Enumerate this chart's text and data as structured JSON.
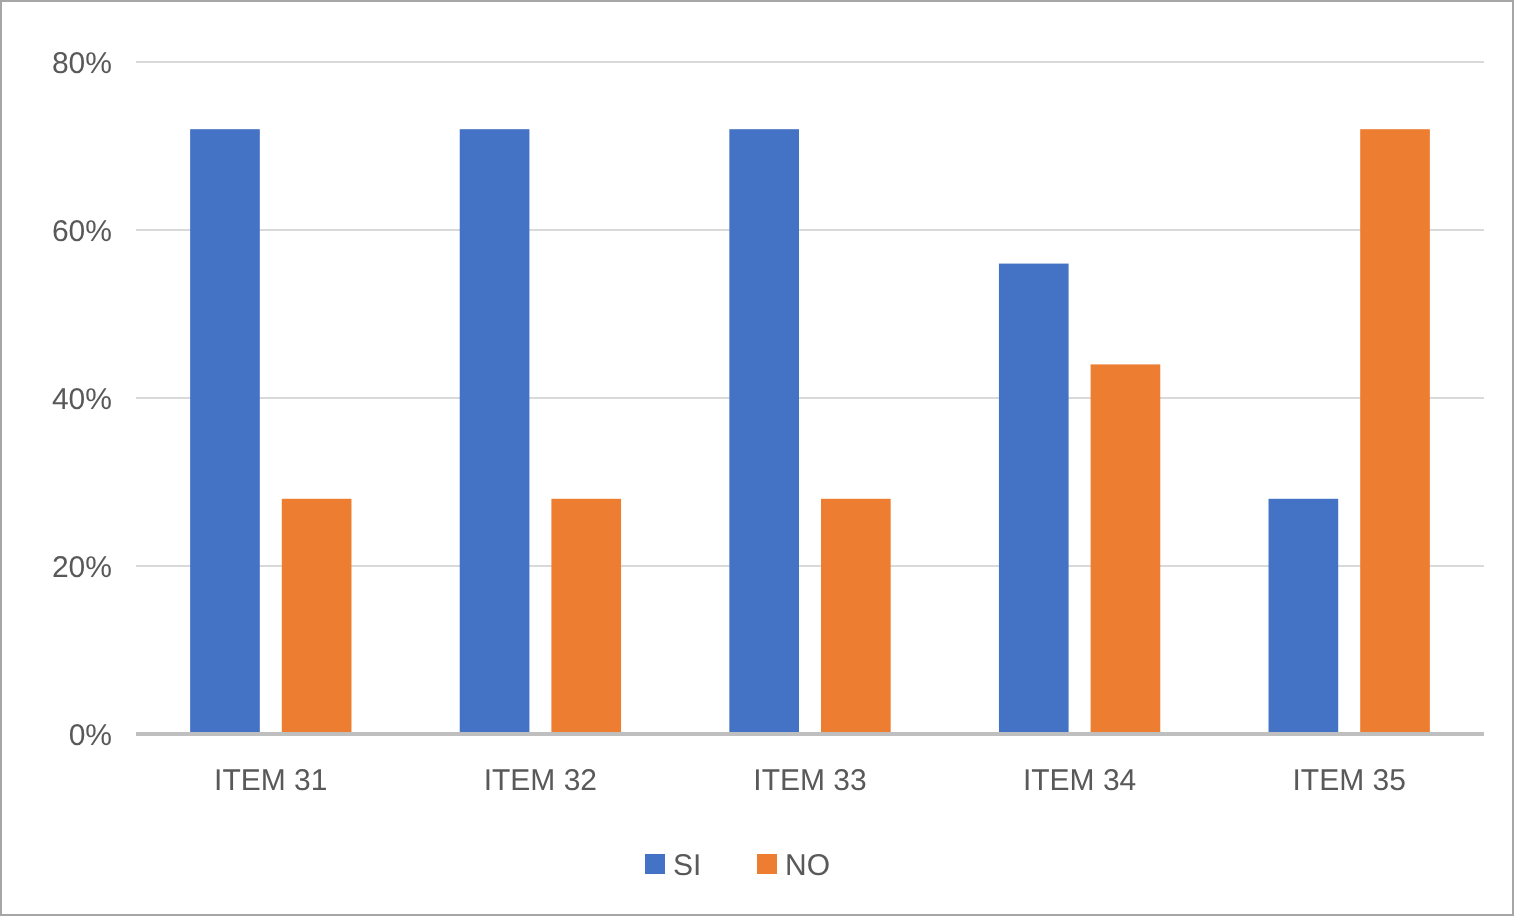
{
  "chart_data": {
    "type": "bar",
    "categories": [
      "ITEM 31",
      "ITEM 32",
      "ITEM 33",
      "ITEM 34",
      "ITEM 35"
    ],
    "series": [
      {
        "name": "SI",
        "color": "#4472c4",
        "values": [
          72,
          72,
          72,
          56,
          28
        ]
      },
      {
        "name": "NO",
        "color": "#ed7d31",
        "values": [
          28,
          28,
          28,
          44,
          72
        ]
      }
    ],
    "ylim": [
      0,
      80
    ],
    "yticks": [
      {
        "value": 0,
        "label": "0%"
      },
      {
        "value": 20,
        "label": "20%"
      },
      {
        "value": 40,
        "label": "40%"
      },
      {
        "value": 60,
        "label": "60%"
      },
      {
        "value": 80,
        "label": "80%"
      }
    ],
    "grid": "y",
    "legend": "bottom"
  }
}
